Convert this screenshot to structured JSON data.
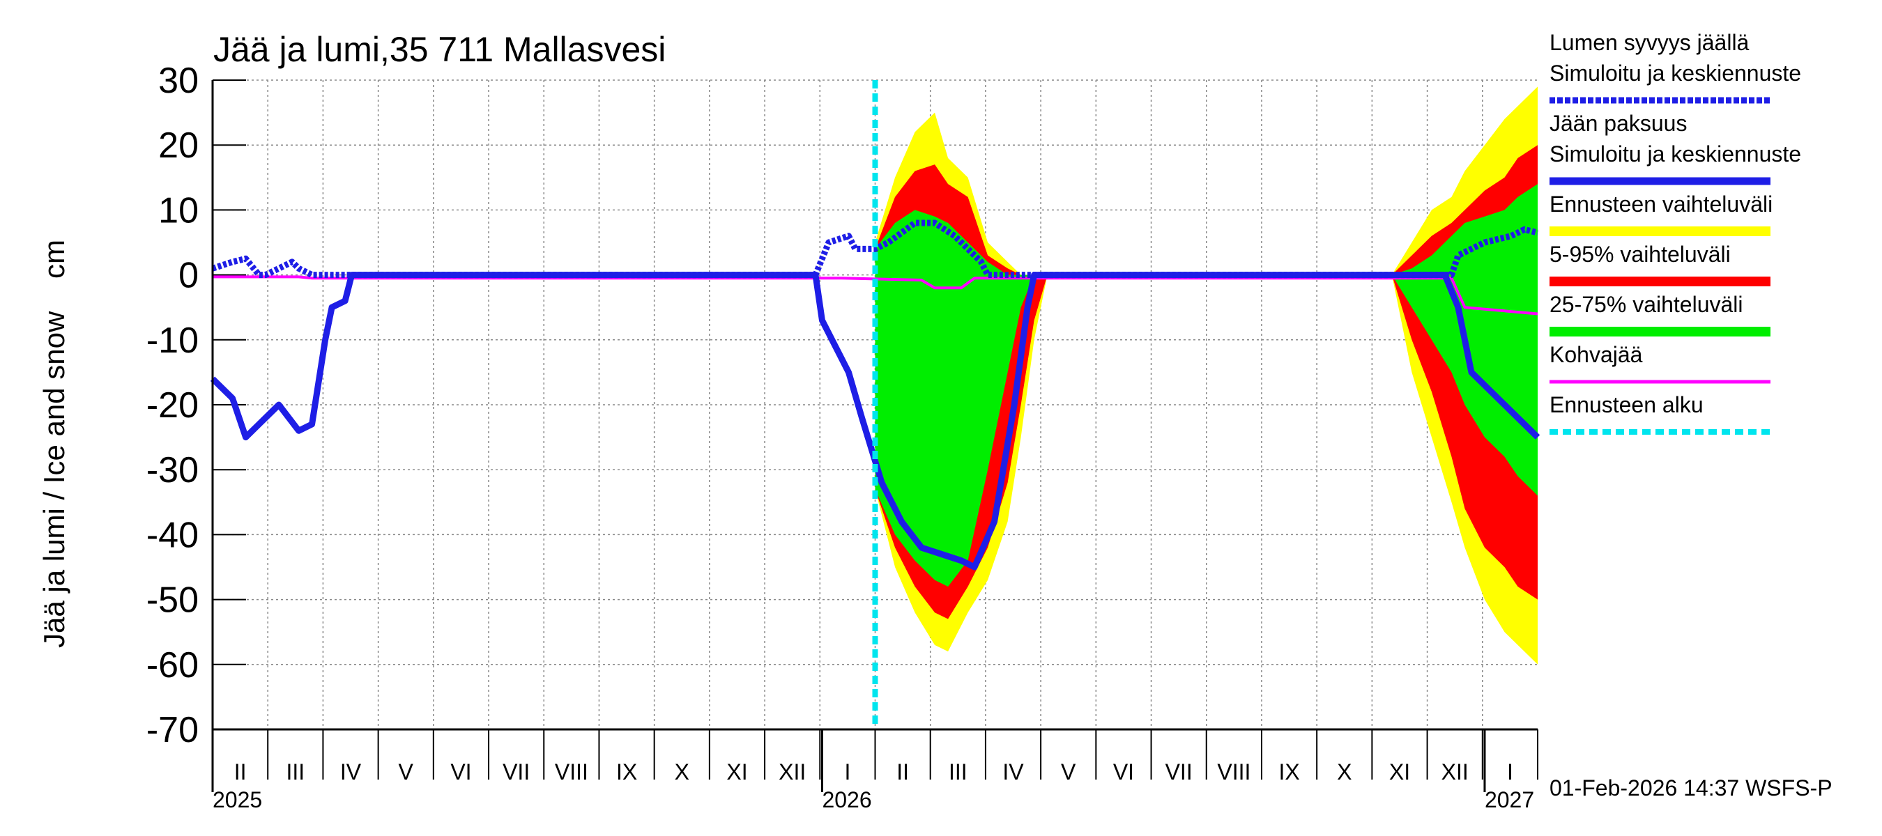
{
  "chart_data": {
    "type": "line",
    "title": "Jää ja lumi,35 711 Mallasvesi",
    "y_label": "Jää ja lumi / Ice and snow    cm",
    "footer": "01-Feb-2026 14:37 WSFS-P",
    "xlim": [
      2025.08,
      2027.08
    ],
    "ylim": [
      -70,
      30
    ],
    "yticks": [
      -70,
      -60,
      -50,
      -40,
      -30,
      -20,
      -10,
      0,
      10,
      20,
      30
    ],
    "grid": true,
    "months": [
      "II",
      "III",
      "IV",
      "V",
      "VI",
      "VII",
      "VIII",
      "IX",
      "X",
      "XI",
      "XII",
      "I",
      "II",
      "III",
      "IV",
      "V",
      "VI",
      "VII",
      "VIII",
      "IX",
      "X",
      "XI",
      "XII",
      "I"
    ],
    "xticks": [
      {
        "value": 2025.08,
        "label": "2025"
      },
      2026,
      2027
    ],
    "series": [
      {
        "name": "Lumen syvyys jäällä",
        "name2": "Simuloitu ja keskiennuste",
        "color": "#1e1ee6",
        "dashed": true,
        "x": [
          2025.08,
          2025.11,
          2025.13,
          2025.15,
          2025.16,
          2025.2,
          2025.21,
          2025.23,
          2025.99,
          2026.01,
          2026.04,
          2026.05,
          2026.08,
          2026.1,
          2026.14,
          2026.17,
          2026.2,
          2026.22,
          2026.24,
          2026.25,
          2026.95,
          2026.96,
          2027.0,
          2027.04,
          2027.06,
          2027.08
        ],
        "values": [
          1,
          2,
          2.5,
          0,
          0,
          2,
          1,
          0,
          0,
          5,
          6,
          4,
          4,
          5,
          8,
          8,
          6,
          4,
          2,
          0,
          0,
          3,
          5,
          6,
          7,
          6.5
        ]
      },
      {
        "name": "Jään paksuus",
        "name2": "Simuloitu ja keskiennuste",
        "color": "#1e1ee6",
        "dashed": false,
        "x": [
          2025.08,
          2025.11,
          2025.13,
          2025.15,
          2025.18,
          2025.21,
          2025.23,
          2025.25,
          2025.26,
          2025.28,
          2025.29,
          2025.99,
          2026.0,
          2026.04,
          2026.06,
          2026.09,
          2026.12,
          2026.15,
          2026.21,
          2026.23,
          2026.26,
          2026.29,
          2026.31,
          2026.32,
          2026.94,
          2026.96,
          2026.98,
          2027.03,
          2027.08
        ],
        "values": [
          -16,
          -19,
          -25,
          -23,
          -20,
          -24,
          -23,
          -10,
          -5,
          -4,
          0,
          0,
          -7,
          -15,
          -22,
          -32,
          -38,
          -42,
          -44,
          -45,
          -38,
          -20,
          -5,
          0,
          0,
          -5,
          -15,
          -20,
          -25
        ]
      },
      {
        "name": "Kohvajää",
        "color": "#ff00ff",
        "dashed": false,
        "x": [
          2025.08,
          2025.21,
          2025.23,
          2026.03,
          2026.15,
          2026.17,
          2026.21,
          2026.23,
          2026.95,
          2026.97,
          2027.08
        ],
        "values": [
          -0.3,
          -0.3,
          -0.5,
          -0.5,
          -0.8,
          -2,
          -2,
          -0.5,
          -0.5,
          -5,
          -6
        ]
      }
    ],
    "bands_x": [
      2026.08,
      2026.11,
      2026.14,
      2026.17,
      2026.19,
      2026.22,
      2026.25,
      2026.28,
      2026.3,
      2026.32,
      2026.34,
      null,
      2026.86,
      2026.89,
      2026.92,
      2026.95,
      2026.97,
      2027.0,
      2027.03,
      2027.05,
      2027.08
    ],
    "bands": [
      {
        "name": "Ennusteen vaihteluväli",
        "color": "#ffff00",
        "upper": [
          5,
          15,
          22,
          25,
          18,
          15,
          5,
          2,
          0,
          0,
          0,
          null,
          0,
          5,
          10,
          12,
          16,
          20,
          24,
          26,
          29
        ],
        "lower": [
          -33,
          -45,
          -52,
          -57,
          -58,
          -52,
          -47,
          -38,
          -25,
          -10,
          0,
          null,
          0,
          -15,
          -25,
          -35,
          -42,
          -50,
          -55,
          -57,
          -60
        ]
      },
      {
        "name": "5-95% vaihteluväli",
        "color": "#ff0000",
        "upper": [
          4,
          12,
          16,
          17,
          14,
          12,
          3,
          1,
          0,
          0,
          0,
          null,
          0,
          3,
          6,
          8,
          10,
          13,
          15,
          18,
          20
        ],
        "lower": [
          -33,
          -42,
          -48,
          -52,
          -53,
          -48,
          -42,
          -32,
          -20,
          -7,
          0,
          null,
          0,
          -10,
          -18,
          -28,
          -36,
          -42,
          -45,
          -48,
          -50
        ]
      },
      {
        "name": "25-75% vaihteluväli",
        "color": "#00ee00",
        "upper": [
          4,
          8,
          10,
          9,
          8,
          5,
          2,
          0,
          0,
          0,
          0,
          null,
          0,
          1,
          3,
          6,
          8,
          9,
          10,
          12,
          14
        ],
        "lower": [
          -33,
          -40,
          -44,
          -47,
          -48,
          -44,
          -30,
          -15,
          -5,
          0,
          0,
          null,
          0,
          -5,
          -10,
          -15,
          -20,
          -25,
          -28,
          -31,
          -34
        ]
      }
    ],
    "forecast_start": {
      "name": "Ennusteen alku",
      "color": "#00e5ee",
      "x": 2026.08
    }
  }
}
